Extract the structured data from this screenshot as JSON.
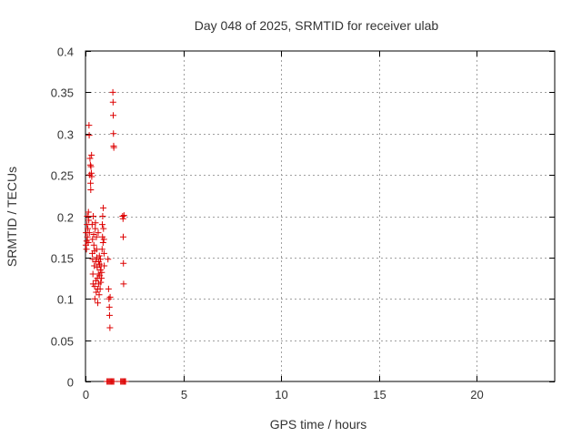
{
  "chart_data": {
    "type": "scatter",
    "title": "Day 048 of 2025, SRMTID for receiver ulab",
    "xlabel": "GPS time / hours",
    "ylabel": "SRMTID / TECUs",
    "xlim": [
      0,
      24
    ],
    "ylim": [
      0,
      0.4
    ],
    "xticks": [
      0,
      5,
      10,
      15,
      20
    ],
    "yticks": [
      0,
      0.05,
      0.1,
      0.15,
      0.2,
      0.25,
      0.3,
      0.35,
      0.4
    ],
    "grid": true,
    "marker": "+",
    "color": "#dd0000",
    "series": [
      {
        "name": "SRMTID",
        "points": [
          [
            0.02,
            0.165
          ],
          [
            0.03,
            0.18
          ],
          [
            0.05,
            0.16
          ],
          [
            0.06,
            0.17
          ],
          [
            0.08,
            0.19
          ],
          [
            0.09,
            0.2
          ],
          [
            0.1,
            0.175
          ],
          [
            0.12,
            0.185
          ],
          [
            0.14,
            0.168
          ],
          [
            0.15,
            0.205
          ],
          [
            0.17,
            0.195
          ],
          [
            0.18,
            0.31
          ],
          [
            0.19,
            0.298
          ],
          [
            0.2,
            0.18
          ],
          [
            0.22,
            0.25
          ],
          [
            0.23,
            0.27
          ],
          [
            0.25,
            0.262
          ],
          [
            0.26,
            0.24
          ],
          [
            0.27,
            0.232
          ],
          [
            0.28,
            0.26
          ],
          [
            0.3,
            0.252
          ],
          [
            0.31,
            0.274
          ],
          [
            0.32,
            0.248
          ],
          [
            0.34,
            0.19
          ],
          [
            0.35,
            0.155
          ],
          [
            0.36,
            0.172
          ],
          [
            0.37,
            0.148
          ],
          [
            0.38,
            0.13
          ],
          [
            0.39,
            0.118
          ],
          [
            0.4,
            0.2
          ],
          [
            0.42,
            0.178
          ],
          [
            0.43,
            0.165
          ],
          [
            0.45,
            0.14
          ],
          [
            0.46,
            0.158
          ],
          [
            0.47,
            0.115
          ],
          [
            0.48,
            0.1
          ],
          [
            0.5,
            0.185
          ],
          [
            0.51,
            0.192
          ],
          [
            0.52,
            0.145
          ],
          [
            0.53,
            0.122
          ],
          [
            0.55,
            0.108
          ],
          [
            0.56,
            0.175
          ],
          [
            0.57,
            0.16
          ],
          [
            0.58,
            0.15
          ],
          [
            0.6,
            0.138
          ],
          [
            0.61,
            0.125
          ],
          [
            0.62,
            0.112
          ],
          [
            0.63,
            0.095
          ],
          [
            0.65,
            0.18
          ],
          [
            0.66,
            0.13
          ],
          [
            0.67,
            0.145
          ],
          [
            0.68,
            0.118
          ],
          [
            0.7,
            0.105
          ],
          [
            0.71,
            0.152
          ],
          [
            0.72,
            0.142
          ],
          [
            0.73,
            0.128
          ],
          [
            0.75,
            0.112
          ],
          [
            0.76,
            0.135
          ],
          [
            0.77,
            0.148
          ],
          [
            0.78,
            0.12
          ],
          [
            0.8,
            0.14
          ],
          [
            0.82,
            0.125
          ],
          [
            0.83,
            0.132
          ],
          [
            0.85,
            0.16
          ],
          [
            0.86,
            0.19
          ],
          [
            0.87,
            0.175
          ],
          [
            0.88,
            0.2
          ],
          [
            0.9,
            0.168
          ],
          [
            0.91,
            0.21
          ],
          [
            0.92,
            0.185
          ],
          [
            0.94,
            0.172
          ],
          [
            0.95,
            0.155
          ],
          [
            0.96,
            0.14
          ],
          [
            1.15,
            0.148
          ],
          [
            1.18,
            0.112
          ],
          [
            1.2,
            0.1
          ],
          [
            1.22,
            0.09
          ],
          [
            1.23,
            0.08
          ],
          [
            1.25,
            0.065
          ],
          [
            1.26,
            0.102
          ],
          [
            1.4,
            0.35
          ],
          [
            1.41,
            0.338
          ],
          [
            1.42,
            0.322
          ],
          [
            1.43,
            0.3
          ],
          [
            1.44,
            0.285
          ],
          [
            1.45,
            0.283
          ],
          [
            1.9,
            0.2
          ],
          [
            1.92,
            0.197
          ],
          [
            1.93,
            0.175
          ],
          [
            1.94,
            0.143
          ],
          [
            1.95,
            0.118
          ],
          [
            1.97,
            0.201
          ],
          [
            1.1,
            0.0
          ],
          [
            1.15,
            0.0
          ],
          [
            1.2,
            0.0
          ],
          [
            1.25,
            0.0
          ],
          [
            1.3,
            0.0
          ],
          [
            1.35,
            0.0
          ],
          [
            1.4,
            0.0
          ],
          [
            1.45,
            0.0
          ],
          [
            1.8,
            0.0
          ],
          [
            1.85,
            0.0
          ],
          [
            1.9,
            0.0
          ],
          [
            1.95,
            0.0
          ],
          [
            2.0,
            0.0
          ],
          [
            2.05,
            0.0
          ]
        ]
      }
    ]
  }
}
